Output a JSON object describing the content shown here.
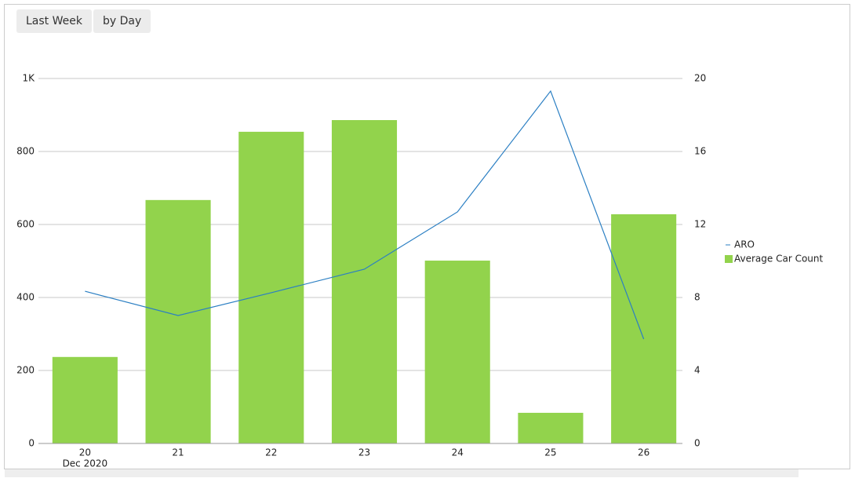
{
  "buttons": [
    "Last Week",
    "by Day"
  ],
  "chart_data": {
    "type": "bar",
    "categories": [
      "20",
      "21",
      "22",
      "23",
      "24",
      "25",
      "26"
    ],
    "x_period": "Dec 2020",
    "series": [
      {
        "name": "ARO",
        "type": "line",
        "axis": "y2",
        "color": "#2b7fc3",
        "values": [
          8.34,
          7.01,
          8.26,
          9.55,
          12.69,
          19.31,
          5.72
        ]
      },
      {
        "name": "Average Car Count",
        "type": "bar",
        "color": "#92d34c",
        "values": [
          237,
          667,
          854,
          886,
          501,
          84,
          628
        ]
      }
    ],
    "ylim": [
      0,
      1000
    ],
    "yticks": [
      0,
      200,
      400,
      600,
      800,
      {
        "value": 1000,
        "label": "1K"
      }
    ],
    "y2lim": [
      0,
      20
    ],
    "y2ticks": [
      0,
      4,
      8,
      12,
      16,
      20
    ],
    "grid": true,
    "legend": "right"
  }
}
